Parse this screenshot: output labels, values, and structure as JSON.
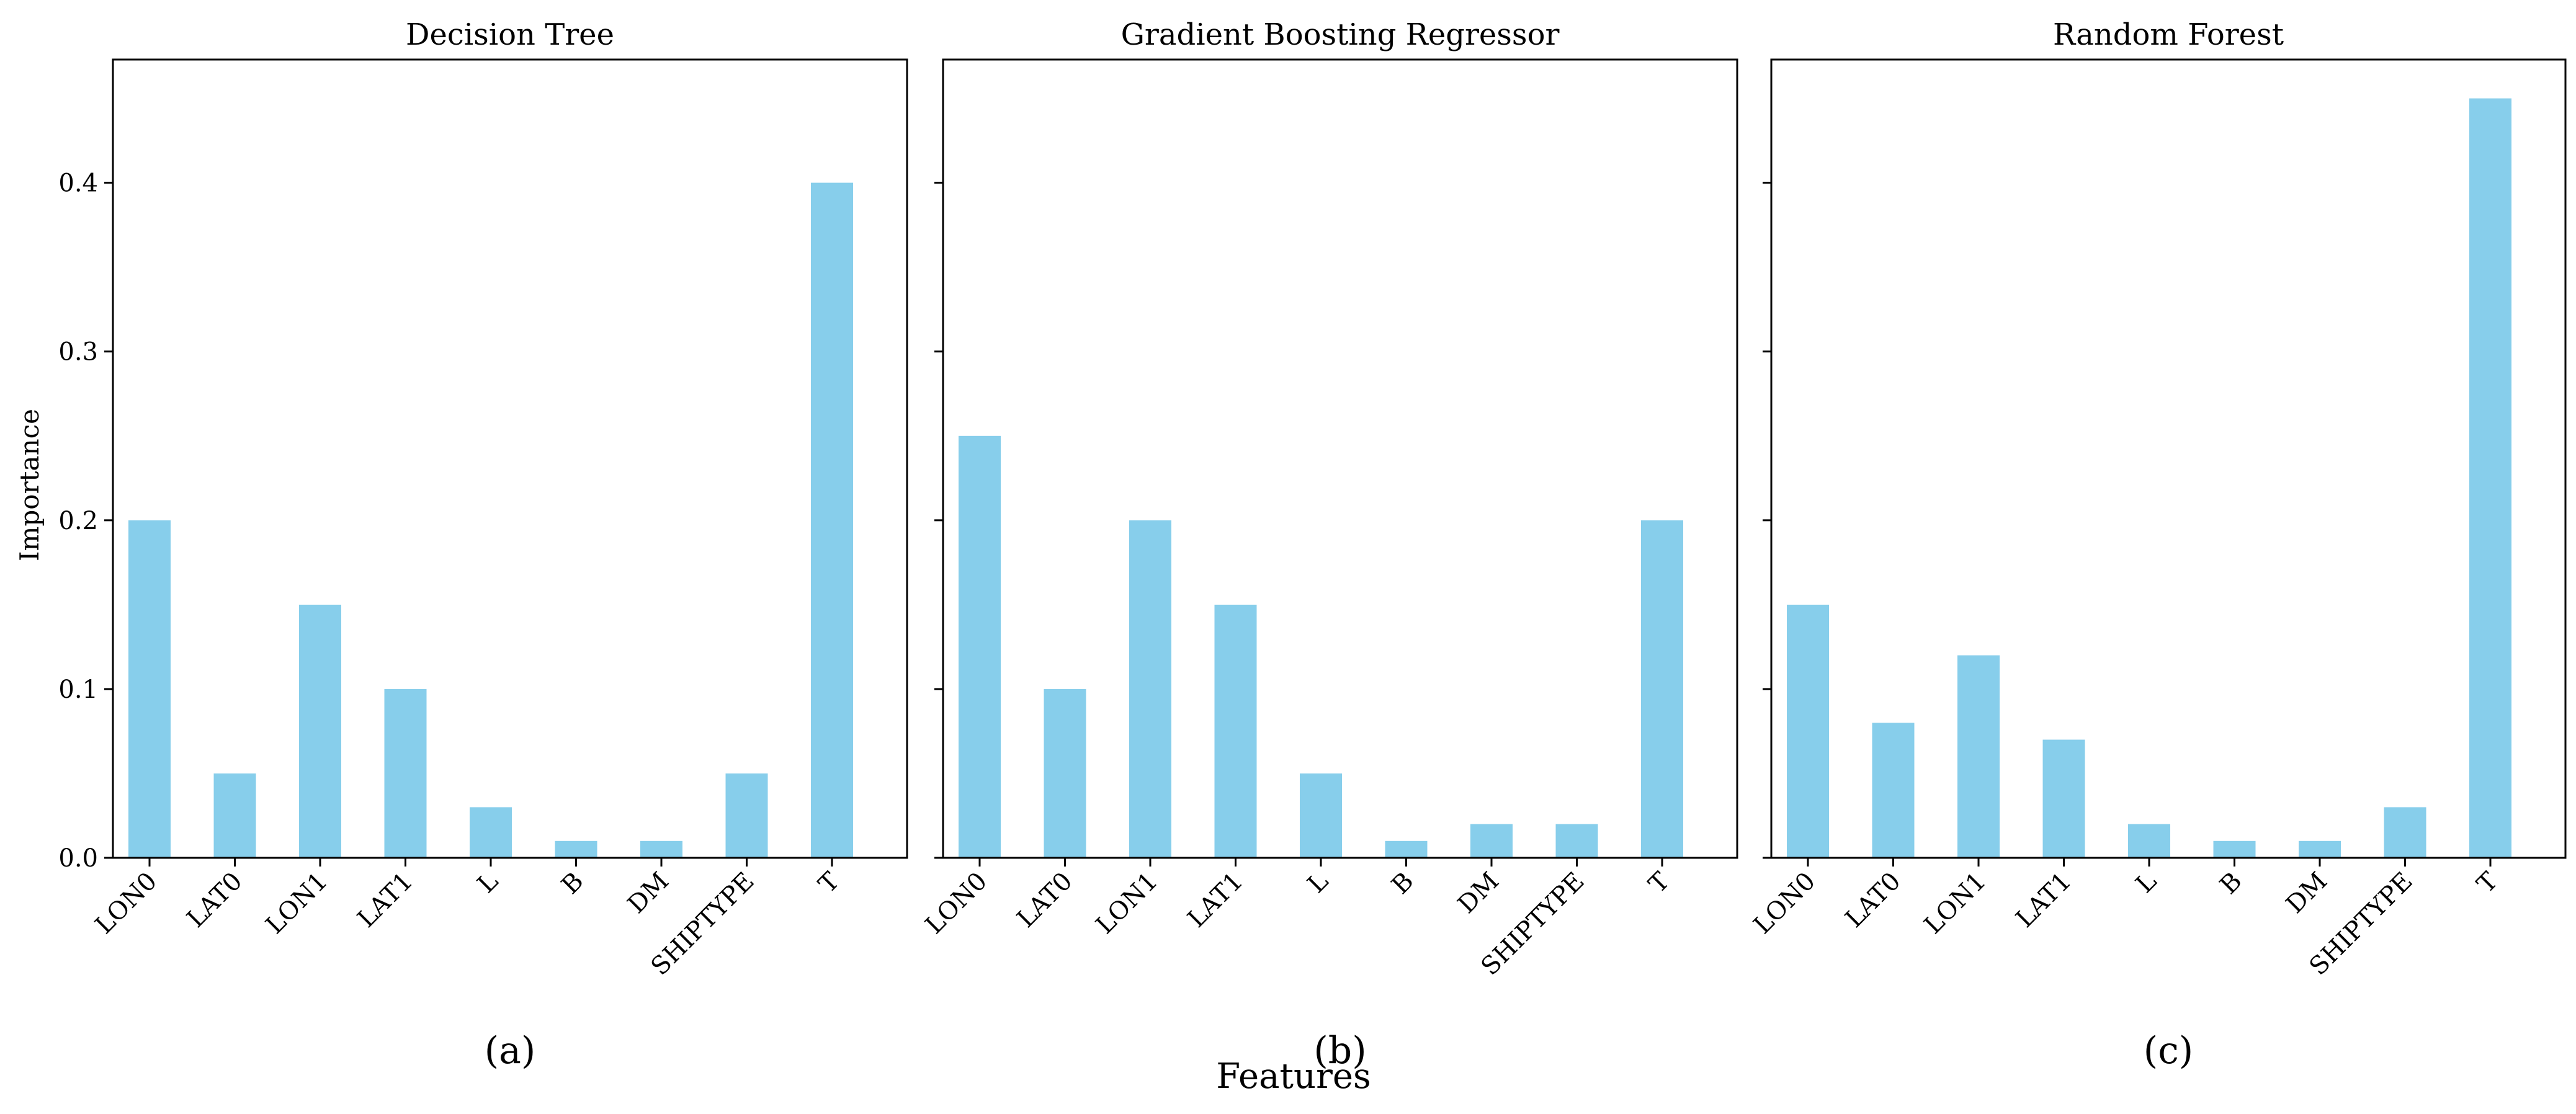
{
  "figure": {
    "ylabel": "Importance",
    "xlabel": "Features"
  },
  "style": {
    "bar_color": "#87CEEB",
    "axis_color": "#000000"
  },
  "chart_data": [
    {
      "type": "bar",
      "title": "Decision Tree",
      "panel_label": "(a)",
      "categories": [
        "LON0",
        "LAT0",
        "LON1",
        "LAT1",
        "L",
        "B",
        "DM",
        "SHIPTYPE",
        "T"
      ],
      "values": [
        0.2,
        0.05,
        0.15,
        0.1,
        0.03,
        0.01,
        0.01,
        0.05,
        0.4
      ],
      "xlabel": "Features",
      "ylabel": "Importance",
      "ylim": [
        0,
        0.473
      ],
      "yticks": [
        0.0,
        0.1,
        0.2,
        0.3,
        0.4
      ],
      "ytick_labels": [
        "0.0",
        "0.1",
        "0.2",
        "0.3",
        "0.4"
      ],
      "grid": false
    },
    {
      "type": "bar",
      "title": "Gradient Boosting Regressor",
      "panel_label": "(b)",
      "categories": [
        "LON0",
        "LAT0",
        "LON1",
        "LAT1",
        "L",
        "B",
        "DM",
        "SHIPTYPE",
        "T"
      ],
      "values": [
        0.25,
        0.1,
        0.2,
        0.15,
        0.05,
        0.01,
        0.02,
        0.02,
        0.2
      ],
      "xlabel": "Features",
      "ylabel": "Importance",
      "ylim": [
        0,
        0.473
      ],
      "yticks": [
        0.0,
        0.1,
        0.2,
        0.3,
        0.4
      ],
      "ytick_labels": [
        "",
        "",
        "",
        "",
        ""
      ],
      "grid": false
    },
    {
      "type": "bar",
      "title": "Random Forest",
      "panel_label": "(c)",
      "categories": [
        "LON0",
        "LAT0",
        "LON1",
        "LAT1",
        "L",
        "B",
        "DM",
        "SHIPTYPE",
        "T"
      ],
      "values": [
        0.15,
        0.08,
        0.12,
        0.07,
        0.02,
        0.01,
        0.01,
        0.03,
        0.45
      ],
      "xlabel": "Features",
      "ylabel": "Importance",
      "ylim": [
        0,
        0.473
      ],
      "yticks": [
        0.0,
        0.1,
        0.2,
        0.3,
        0.4
      ],
      "ytick_labels": [
        "",
        "",
        "",
        "",
        ""
      ],
      "grid": false
    }
  ]
}
